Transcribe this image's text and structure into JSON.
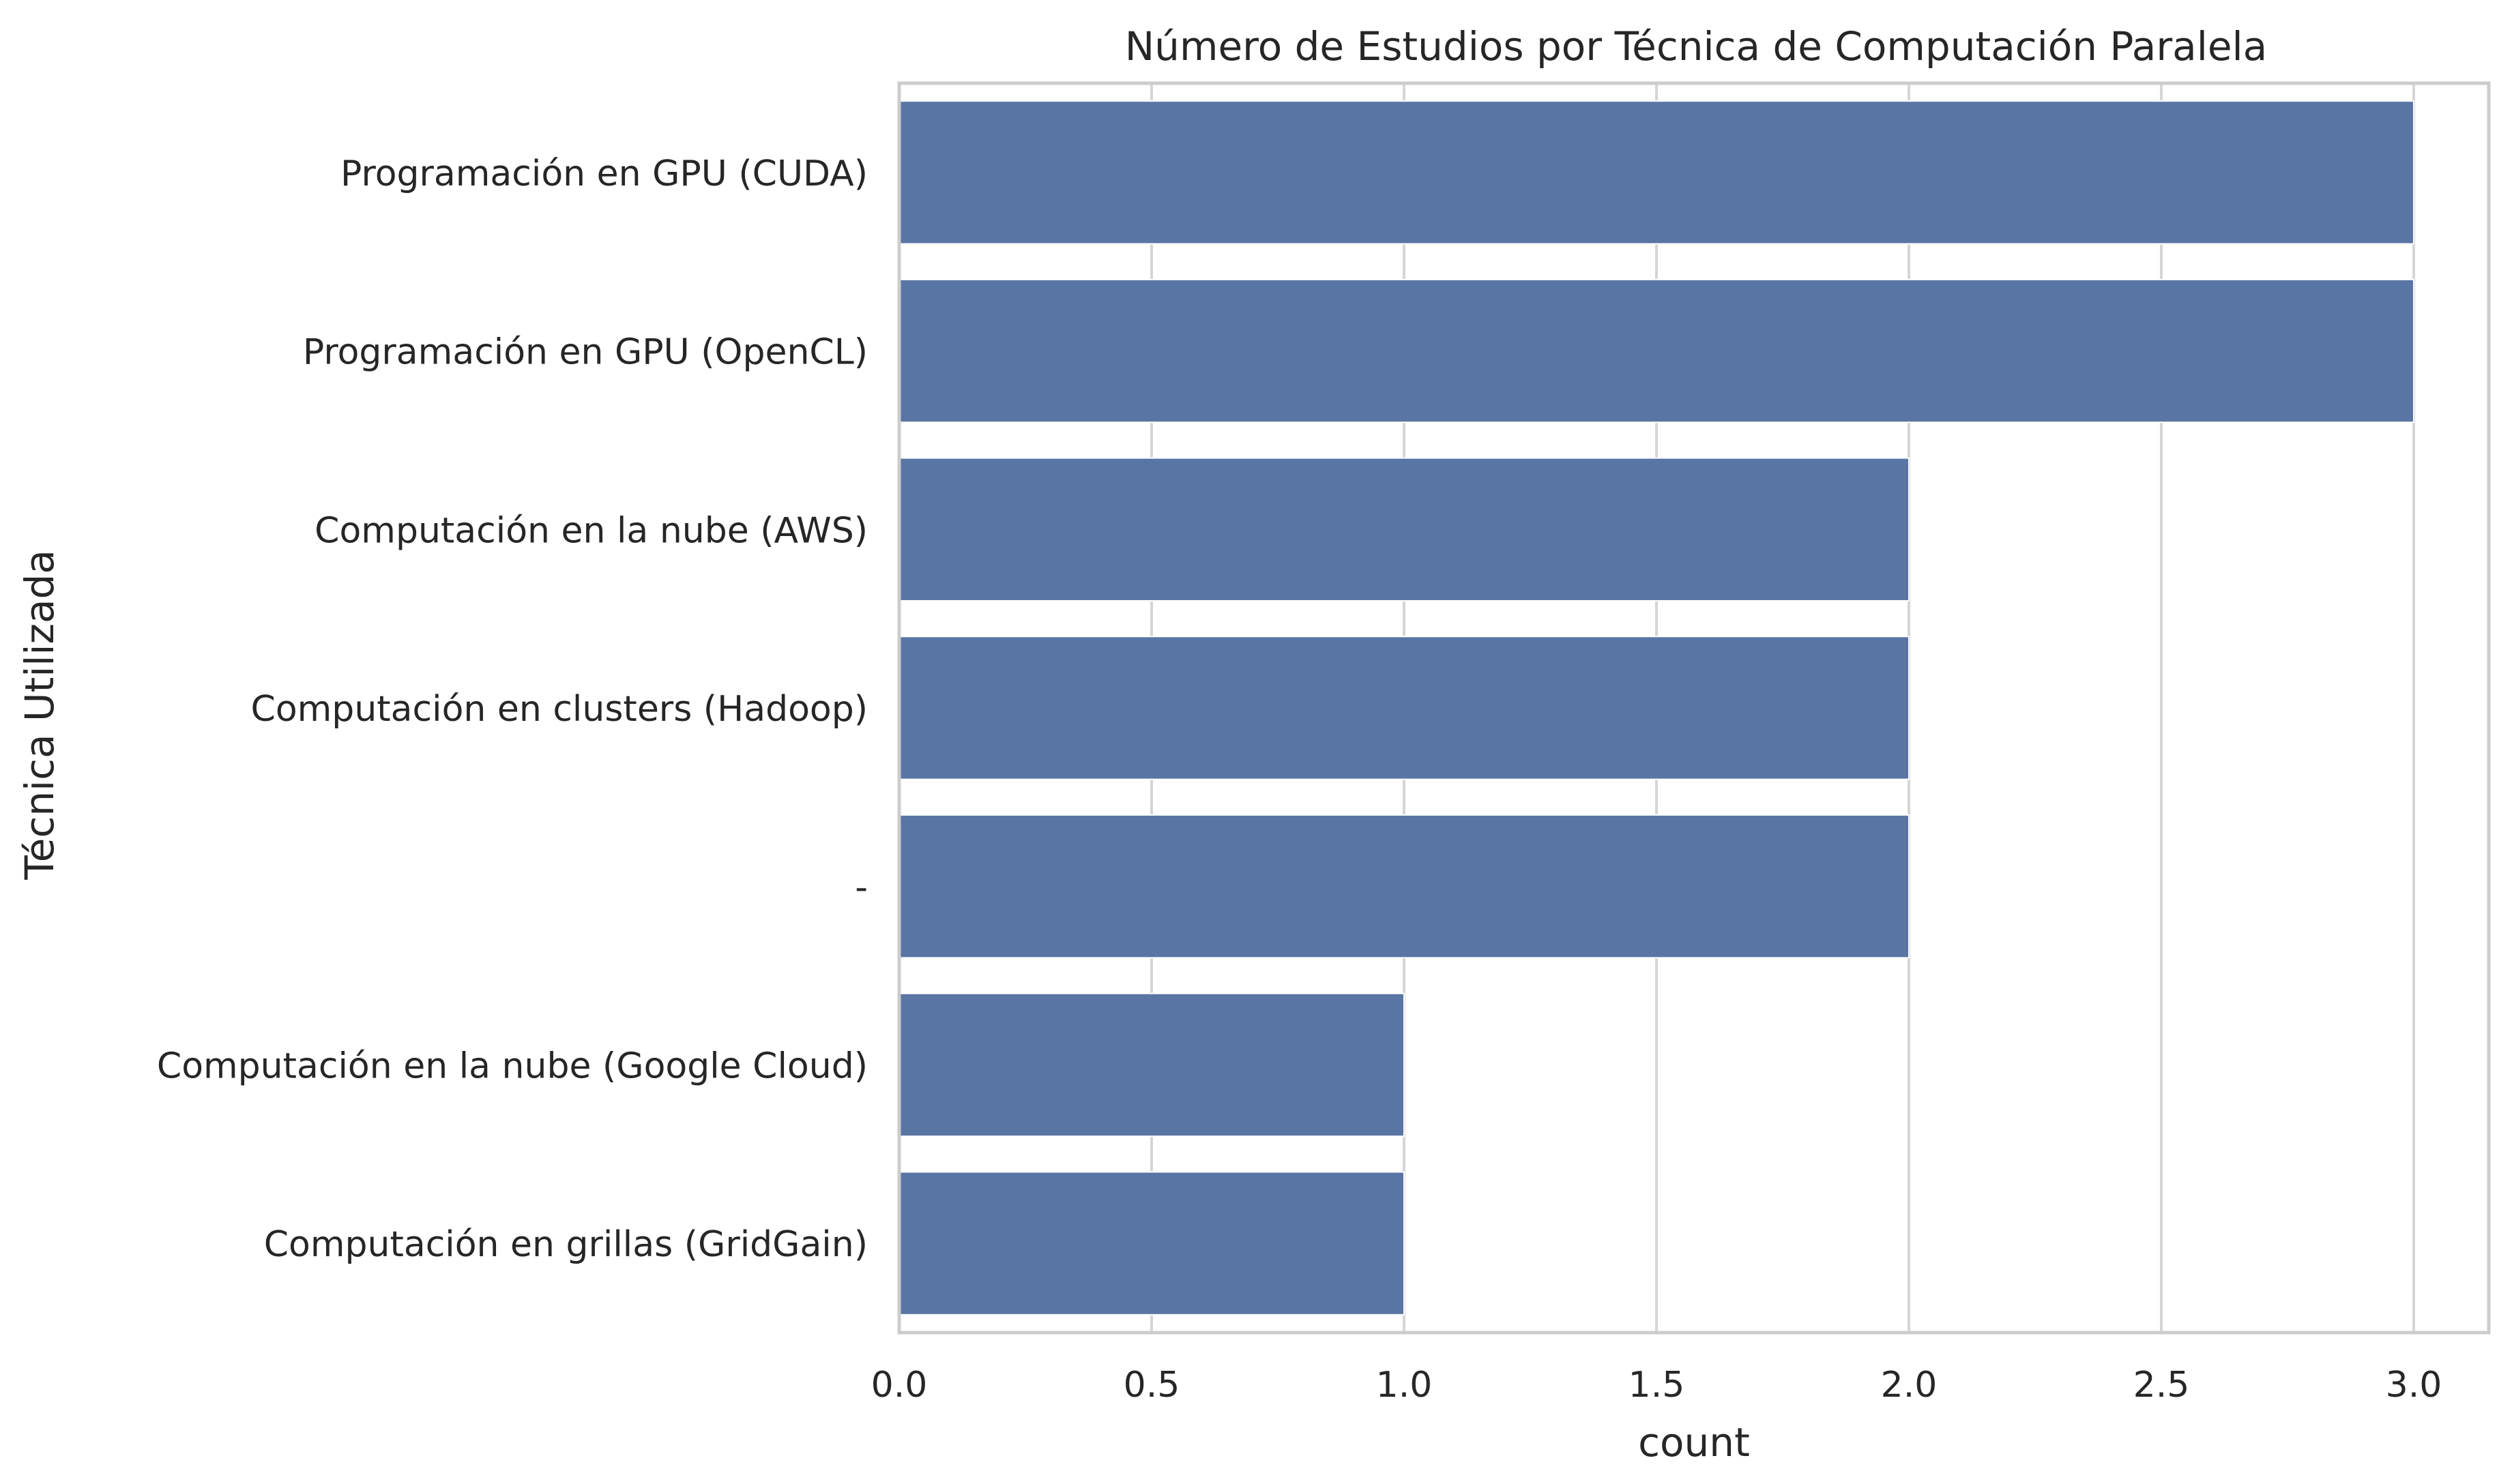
{
  "chart_data": {
    "type": "bar",
    "orientation": "horizontal",
    "title": "Número de Estudios por Técnica de Computación Paralela",
    "xlabel": "count",
    "ylabel": "Técnica Utilizada",
    "categories": [
      "Programación en GPU (CUDA)",
      "Programación en GPU (OpenCL)",
      "Computación en la nube (AWS)",
      "Computación en clusters (Hadoop)",
      "-",
      "Computación en la nube (Google Cloud)",
      "Computación en grillas (GridGain)"
    ],
    "values": [
      3,
      3,
      2,
      2,
      2,
      1,
      1
    ],
    "xlim": [
      0,
      3.15
    ],
    "xticks": [
      0.0,
      0.5,
      1.0,
      1.5,
      2.0,
      2.5,
      3.0
    ],
    "xtick_labels": [
      "0.0",
      "0.5",
      "1.0",
      "1.5",
      "2.0",
      "2.5",
      "3.0"
    ],
    "grid": true,
    "colors": {
      "bar": "#5975a4",
      "grid": "#d5d5d5",
      "frame": "#cccccc"
    }
  }
}
